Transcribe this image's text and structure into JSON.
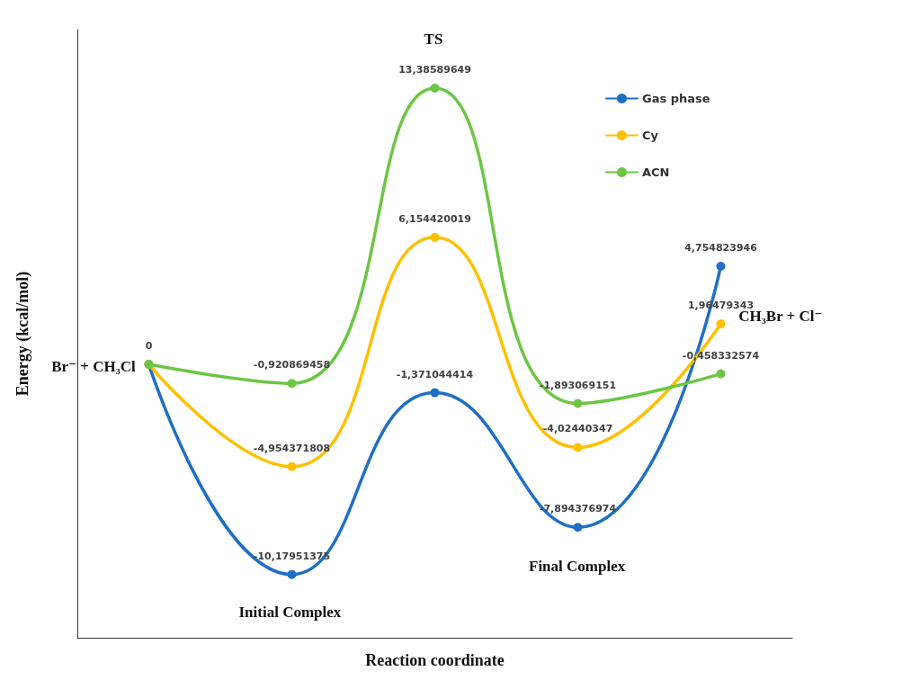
{
  "chart_data": {
    "type": "line",
    "xlabel": "Reaction coordinate",
    "ylabel": "Energy (kcal/mol)",
    "categories": [
      null,
      null,
      null,
      null,
      null
    ],
    "series": [
      {
        "name": "Gas phase",
        "color": "#1f6fc5",
        "values": [
          0,
          -10.17951375,
          -1.371044414,
          -7.894376974,
          4.754823946
        ],
        "value_labels": [
          null,
          "-10,17951375",
          "-1,371044414",
          "-7,894376974",
          "4,754823946"
        ]
      },
      {
        "name": "Cy",
        "color": "#ffc000",
        "values": [
          0,
          -4.954371808,
          6.154420019,
          -4.02440347,
          1.96479343
        ],
        "value_labels": [
          null,
          "-4,954371808",
          "6,154420019",
          "-4,02440347",
          "1,96479343"
        ]
      },
      {
        "name": "ACN",
        "color": "#6cc644",
        "values": [
          0,
          -0.920869458,
          13.38589649,
          -1.893069151,
          -0.458332574
        ],
        "value_labels": [
          "0",
          "-0,920869458",
          "13,38589649",
          "-1,893069151",
          "-0,458332574"
        ]
      }
    ],
    "annotations": [
      "TS",
      "Initial Complex",
      "Final Complex",
      "Br⁻ + CH₃Cl",
      "CH₃Br + Cl⁻"
    ],
    "marker": "circle",
    "line_style": "solid",
    "legend": "top right",
    "grid": false,
    "tick_labels": false
  }
}
